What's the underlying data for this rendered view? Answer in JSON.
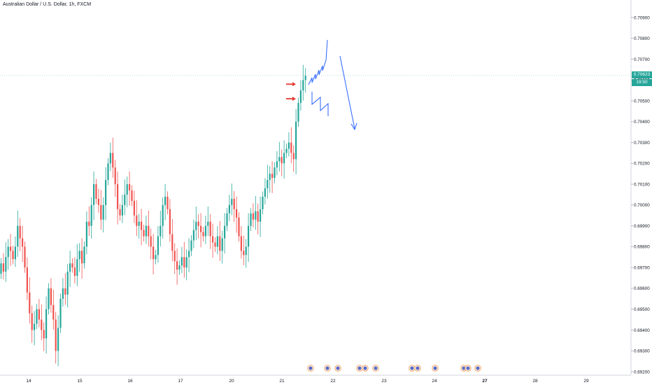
{
  "header": {
    "symbol_title": "Australian Dollar / U.S. Dollar, 1h, FXCM"
  },
  "price_tag": {
    "price": "0.70623",
    "countdown": "19:50"
  },
  "colors": {
    "up": "#26a69a",
    "down": "#ef5350",
    "drawing": "#2962ff",
    "arrow": "#e53935",
    "grid": "#f0f3fa"
  },
  "chart_data": {
    "type": "candlestick",
    "title": "Australian Dollar / U.S. Dollar, 1h, FXCM",
    "x_tick_labels": [
      "14",
      "15",
      "16",
      "17",
      "20",
      "21",
      "22",
      "23",
      "24",
      "27",
      "28",
      "29"
    ],
    "y_tick_labels": [
      "0.70900",
      "0.70800",
      "0.70700",
      "0.70600",
      "0.70500",
      "0.70400",
      "0.70300",
      "0.70200",
      "0.70100",
      "0.70000",
      "0.69900",
      "0.69800",
      "0.69700",
      "0.69600",
      "0.69500",
      "0.69400",
      "0.69300",
      "0.69200"
    ],
    "ylim": [
      0.6918,
      0.7095
    ],
    "last_price": 0.70623,
    "grid": false,
    "series": [
      {
        "closes": [
          0.6972,
          0.6968,
          0.6975,
          0.698,
          0.6978,
          0.6974,
          0.698,
          0.699,
          0.6984,
          0.698,
          0.697,
          0.6958,
          0.6948,
          0.694,
          0.6943,
          0.695,
          0.6945,
          0.694,
          0.6936,
          0.695,
          0.696,
          0.6952,
          0.6945,
          0.693,
          0.6941,
          0.6955,
          0.696,
          0.6957,
          0.6968,
          0.6972,
          0.697,
          0.6966,
          0.6974,
          0.6978,
          0.6972,
          0.698,
          0.6992,
          0.699,
          0.7,
          0.701,
          0.7003,
          0.7,
          0.6993,
          0.7,
          0.7012,
          0.702,
          0.7025,
          0.7018,
          0.701,
          0.6998,
          0.6995,
          0.7,
          0.7005,
          0.701,
          0.7007,
          0.7002,
          0.6995,
          0.699,
          0.6992,
          0.6988,
          0.6985,
          0.699,
          0.6985,
          0.698,
          0.6974,
          0.6976,
          0.6985,
          0.699,
          0.7,
          0.7004,
          0.6998,
          0.6986,
          0.6978,
          0.6973,
          0.6969,
          0.6971,
          0.6975,
          0.697,
          0.6975,
          0.6978,
          0.6983,
          0.6988,
          0.6992,
          0.699,
          0.6987,
          0.6985,
          0.699,
          0.6992,
          0.6985,
          0.6982,
          0.698,
          0.6985,
          0.6978,
          0.6984,
          0.699,
          0.6996,
          0.7,
          0.7003,
          0.6998,
          0.6994,
          0.6985,
          0.6978,
          0.6976,
          0.698,
          0.699,
          0.6996,
          0.6993,
          0.6997,
          0.6992,
          0.6998,
          0.7004,
          0.7008,
          0.7012,
          0.7015,
          0.7013,
          0.7018,
          0.7021,
          0.7023,
          0.702,
          0.7025,
          0.7027,
          0.703,
          0.7025,
          0.7022,
          0.704,
          0.7049,
          0.7055,
          0.706,
          0.7062
        ]
      }
    ],
    "markers": [
      {
        "type": "arrow",
        "direction": "right",
        "price": 0.7058
      },
      {
        "type": "arrow",
        "direction": "right",
        "price": 0.7051
      },
      {
        "type": "arrow",
        "direction": "down-right",
        "from": 0.7073,
        "to": 0.7036
      }
    ]
  }
}
